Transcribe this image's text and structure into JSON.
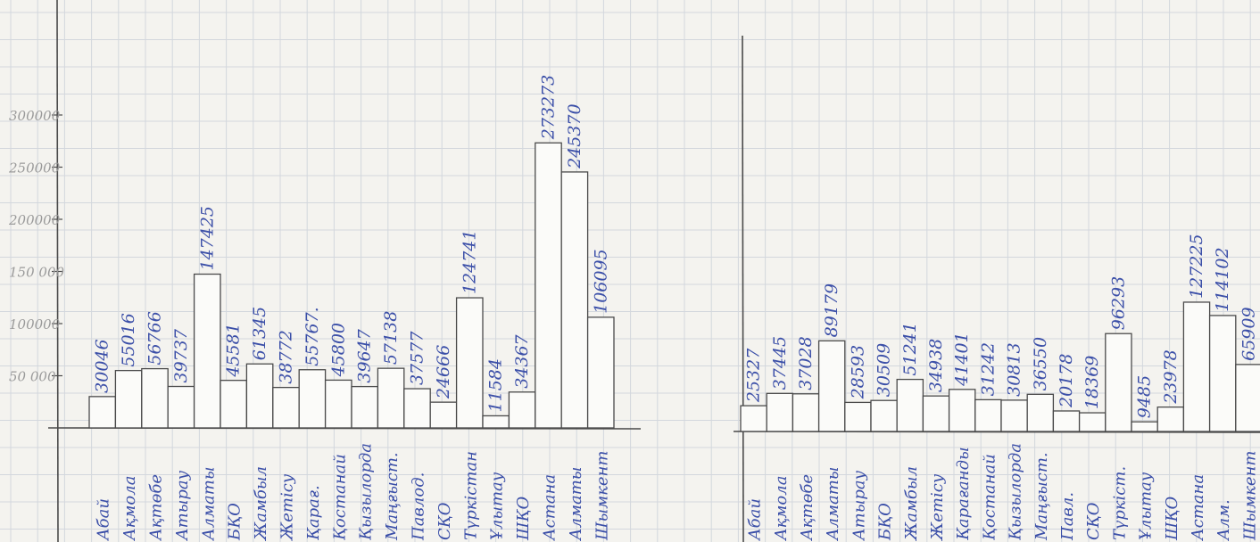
{
  "colors": {
    "paper": "#f4f3ef",
    "grid": "#d3d7dd",
    "pencil": "#4a4a4a",
    "ink": "#3b4fa8",
    "bar_fill": "#fbfbf9"
  },
  "chart_data": [
    {
      "type": "bar",
      "title": "",
      "xlabel": "",
      "ylabel": "",
      "ylim": [
        0,
        300000
      ],
      "grid": true,
      "yticks": [
        {
          "value": 50000,
          "label": "50 000"
        },
        {
          "value": 100000,
          "label": "100000"
        },
        {
          "value": 150000,
          "label": "150 000"
        },
        {
          "value": 200000,
          "label": "200000"
        },
        {
          "value": 250000,
          "label": "250000"
        },
        {
          "value": 300000,
          "label": "300000"
        }
      ],
      "categories": [
        "Абай",
        "Ақмола",
        "Ақтөбе",
        "Атырау",
        "Алматы",
        "БҚО",
        "Жамбыл",
        "Жетісу",
        "Қарағ.",
        "Қостанай",
        "Қызылорда",
        "Маңғыст.",
        "Павлод.",
        "СҚО",
        "Түркістан",
        "Ұлытау",
        "ШҚО",
        "Астана",
        "Алматы",
        "Шымкент"
      ],
      "values": [
        30046,
        55016,
        56766,
        39737,
        147425,
        45581,
        61345,
        38772,
        55767,
        45800,
        39647,
        57138,
        37577,
        24666,
        124741,
        11584,
        34367,
        273273,
        245370,
        106095
      ],
      "value_labels": [
        "30046",
        "55016",
        "56766",
        "39737",
        "147425",
        "45581",
        "61345",
        "38772",
        "55767.",
        "45800",
        "39647",
        "57138",
        "37577",
        "24666",
        "124741",
        "11584",
        "34367",
        "273273",
        "245370",
        "106095"
      ]
    },
    {
      "type": "bar",
      "title": "",
      "xlabel": "",
      "ylabel": "",
      "ylim": [
        0,
        150000
      ],
      "grid": true,
      "categories": [
        "Абай",
        "Ақмола",
        "Ақтөбе",
        "Алматы",
        "Атырау",
        "БҚО",
        "Жамбыл",
        "Жетісу",
        "Қарағанды",
        "Қостанай",
        "Қызылорда",
        "Маңғыст.",
        "Павл.",
        "СҚО",
        "Түркіст.",
        "Ұлытау",
        "ШҚО",
        "Астана",
        "Алм.",
        "Шымкент"
      ],
      "values": [
        25327,
        37445,
        37028,
        89179,
        28593,
        30509,
        51241,
        34938,
        41401,
        31242,
        30813,
        36550,
        20178,
        18369,
        96293,
        9485,
        23978,
        127225,
        114102,
        65909
      ],
      "value_labels": [
        "25327",
        "37445",
        "37028",
        "89179",
        "28593",
        "30509",
        "51241",
        "34938",
        "41401",
        "31242",
        "30813",
        "36550",
        "20178",
        "18369",
        "96293",
        "9485",
        "23978",
        "127225",
        "114102",
        "65909"
      ]
    }
  ]
}
